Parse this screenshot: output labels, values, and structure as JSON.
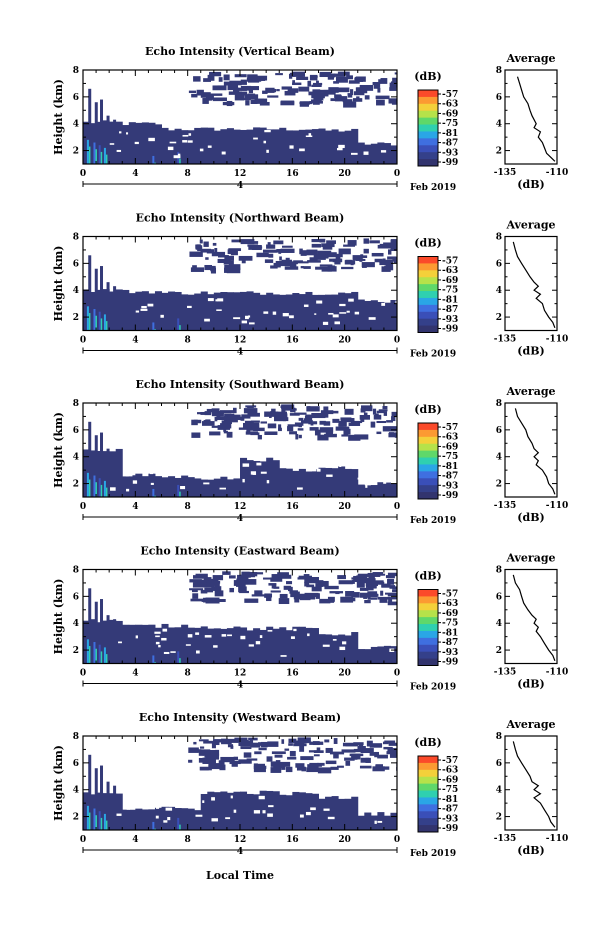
{
  "figure": {
    "xlabel": "Local Time",
    "date_label": "Feb 2019",
    "colorbar_title": "(dB)",
    "colorbar_ticks": [
      "-57",
      "-63",
      "-69",
      "-75",
      "-81",
      "-87",
      "-93",
      "-99"
    ],
    "colorbar_colors": [
      "#fb4a2a",
      "#fc9a32",
      "#f4d03a",
      "#b6e24a",
      "#5fd86a",
      "#2fd0b0",
      "#2aa6e6",
      "#3f6fe0",
      "#3a4fb8",
      "#34408a",
      "#32346e"
    ]
  },
  "chart_data": [
    {
      "type": "heatmap",
      "title": "Echo Intensity (Vertical Beam)",
      "ylabel": "Height (km)",
      "x_range": [
        0,
        24
      ],
      "y_range": [
        1,
        8
      ],
      "x_ticks": [
        "0",
        "4",
        "8",
        "12",
        "16",
        "20",
        "0"
      ],
      "y_ticks": [
        "2",
        "4",
        "6",
        "8"
      ],
      "day_label": "4",
      "layer_top_km": [
        4.1,
        4.0,
        3.6,
        3.6,
        3.6,
        3.6,
        3.5,
        2.5
      ],
      "profile": {
        "title": "Average",
        "xlabel": "(dB)",
        "xlim": [
          -135,
          -110
        ],
        "x_ticks": [
          "-135",
          "-110"
        ],
        "y_ticks": [
          "2",
          "4",
          "6",
          "8"
        ],
        "x": [
          -129,
          -128,
          -127,
          -126,
          -124,
          -123,
          -122,
          -121,
          -120,
          -121,
          -118,
          -119,
          -117,
          -116,
          -115,
          -113,
          -111
        ],
        "y": [
          7.5,
          7.0,
          6.5,
          6.0,
          5.5,
          5.0,
          4.6,
          4.3,
          4.0,
          3.7,
          3.4,
          3.0,
          2.6,
          2.2,
          1.8,
          1.5,
          1.2
        ]
      }
    },
    {
      "type": "heatmap",
      "title": "Echo Intensity (Northward Beam)",
      "ylabel": "Height (km)",
      "x_range": [
        0,
        24
      ],
      "y_range": [
        1,
        8
      ],
      "x_ticks": [
        "0",
        "4",
        "8",
        "12",
        "16",
        "20",
        "0"
      ],
      "y_ticks": [
        "2",
        "4",
        "6",
        "8"
      ],
      "day_label": "4",
      "layer_top_km": [
        4.0,
        3.9,
        3.8,
        3.8,
        3.8,
        3.8,
        3.8,
        3.2
      ],
      "profile": {
        "title": "Average",
        "xlabel": "(dB)",
        "xlim": [
          -135,
          -110
        ],
        "x_ticks": [
          "-135",
          "-110"
        ],
        "y_ticks": [
          "2",
          "4",
          "6",
          "8"
        ],
        "x": [
          -131,
          -130,
          -129,
          -127,
          -125,
          -123,
          -121,
          -119,
          -121,
          -118,
          -120,
          -117,
          -116,
          -114,
          -112,
          -111
        ],
        "y": [
          7.6,
          7.0,
          6.5,
          6.0,
          5.5,
          5.0,
          4.6,
          4.3,
          4.0,
          3.7,
          3.4,
          3.0,
          2.5,
          2.0,
          1.6,
          1.2
        ]
      }
    },
    {
      "type": "heatmap",
      "title": "Echo Intensity (Southward Beam)",
      "ylabel": "Height (km)",
      "x_range": [
        0,
        24
      ],
      "y_range": [
        1,
        8
      ],
      "x_ticks": [
        "0",
        "4",
        "8",
        "12",
        "16",
        "20",
        "0"
      ],
      "y_ticks": [
        "2",
        "4",
        "6",
        "8"
      ],
      "day_label": "4",
      "layer_top_km": [
        4.5,
        2.6,
        2.5,
        2.4,
        3.8,
        3.0,
        3.2,
        2.0
      ],
      "profile": {
        "title": "Average",
        "xlabel": "(dB)",
        "xlim": [
          -135,
          -110
        ],
        "x_ticks": [
          "-135",
          "-110"
        ],
        "y_ticks": [
          "2",
          "4",
          "6",
          "8"
        ],
        "x": [
          -130,
          -129,
          -127,
          -125,
          -124,
          -122,
          -121,
          -119,
          -121,
          -119,
          -120,
          -117,
          -115,
          -114,
          -112,
          -111
        ],
        "y": [
          7.6,
          7.0,
          6.5,
          6.0,
          5.5,
          5.0,
          4.6,
          4.3,
          4.0,
          3.7,
          3.4,
          3.0,
          2.5,
          2.0,
          1.6,
          1.2
        ]
      }
    },
    {
      "type": "heatmap",
      "title": "Echo Intensity (Eastward Beam)",
      "ylabel": "Height (km)",
      "x_range": [
        0,
        24
      ],
      "y_range": [
        1,
        8
      ],
      "x_ticks": [
        "0",
        "4",
        "8",
        "12",
        "16",
        "20",
        "0"
      ],
      "y_ticks": [
        "2",
        "4",
        "6",
        "8"
      ],
      "day_label": "4",
      "layer_top_km": [
        4.2,
        3.8,
        3.8,
        3.7,
        3.6,
        3.6,
        3.2,
        2.2
      ],
      "profile": {
        "title": "Average",
        "xlabel": "(dB)",
        "xlim": [
          -135,
          -110
        ],
        "x_ticks": [
          "-135",
          "-110"
        ],
        "y_ticks": [
          "2",
          "4",
          "6",
          "8"
        ],
        "x": [
          -131,
          -130,
          -128,
          -127,
          -126,
          -124,
          -122,
          -120,
          -121,
          -119,
          -120,
          -118,
          -116,
          -114,
          -112,
          -111
        ],
        "y": [
          7.6,
          7.0,
          6.5,
          6.0,
          5.5,
          5.0,
          4.6,
          4.3,
          4.0,
          3.7,
          3.4,
          3.0,
          2.5,
          2.0,
          1.6,
          1.2
        ]
      }
    },
    {
      "type": "heatmap",
      "title": "Echo Intensity (Westward Beam)",
      "ylabel": "Height (km)",
      "x_range": [
        0,
        24
      ],
      "y_range": [
        1,
        8
      ],
      "x_ticks": [
        "0",
        "4",
        "8",
        "12",
        "16",
        "20",
        "0"
      ],
      "y_ticks": [
        "2",
        "4",
        "6",
        "8"
      ],
      "day_label": "4",
      "layer_top_km": [
        3.8,
        2.6,
        2.6,
        3.8,
        3.8,
        3.7,
        3.4,
        2.2
      ],
      "profile": {
        "title": "Average",
        "xlabel": "(dB)",
        "xlim": [
          -135,
          -110
        ],
        "x_ticks": [
          "-135",
          "-110"
        ],
        "y_ticks": [
          "2",
          "4",
          "6",
          "8"
        ],
        "x": [
          -131,
          -130,
          -129,
          -127,
          -125,
          -123,
          -122,
          -119,
          -121,
          -118,
          -121,
          -118,
          -116,
          -114,
          -113,
          -111
        ],
        "y": [
          7.6,
          7.0,
          6.5,
          6.0,
          5.5,
          5.0,
          4.6,
          4.3,
          4.0,
          3.7,
          3.4,
          3.0,
          2.5,
          2.0,
          1.6,
          1.2
        ]
      }
    }
  ]
}
